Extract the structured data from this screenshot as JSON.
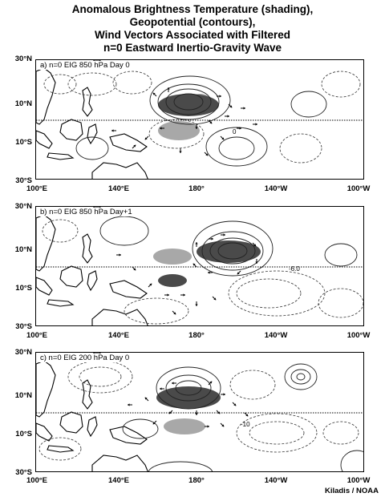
{
  "title_lines": [
    "Anomalous Brightness Temperature (shading),",
    "Geopotential (contours),",
    "Wind Vectors Associated with Filtered",
    "n=0 Eastward Inertio-Gravity Wave"
  ],
  "lat_labels": [
    "30°N",
    "10°N",
    "10°S",
    "30°S"
  ],
  "lon_labels": [
    "100°E",
    "140°E",
    "180°",
    "140°W",
    "100°W"
  ],
  "panels": [
    {
      "label": "a) n=0 EIG 850 hPa Day 0",
      "contour_label": "0"
    },
    {
      "label": "b) n=0 EIG 850 hPa Day+1",
      "contour_label": "-6.0"
    },
    {
      "label": "c) n=0 EIG 200 hPa Day 0",
      "contour_label": "-10"
    }
  ],
  "credit": "Kiladis / NOAA",
  "colors": {
    "shade_dark": "#4a4a4a",
    "shade_light": "#a8a8a8",
    "land": "#000000"
  }
}
